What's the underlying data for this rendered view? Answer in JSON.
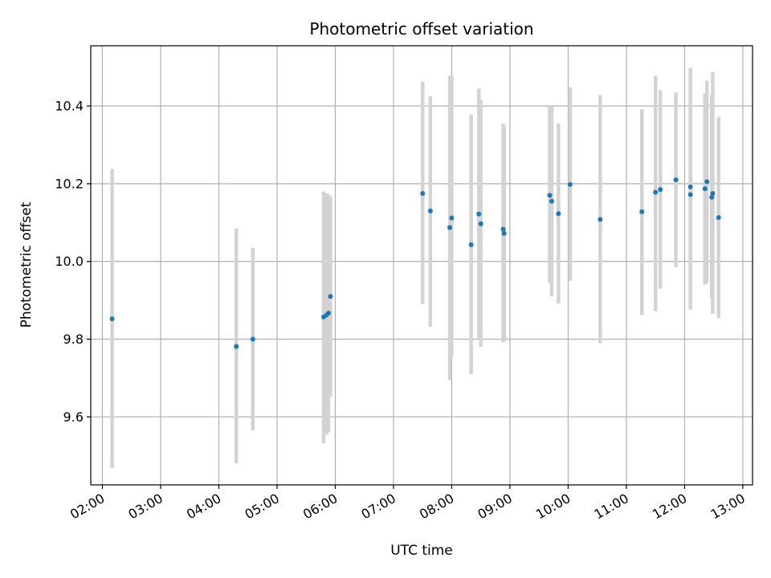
{
  "chart_data": {
    "type": "scatter",
    "title": "Photometric offset variation",
    "xlabel": "UTC time",
    "ylabel": "Photometric offset",
    "xlim": [
      "01:48",
      "13:10"
    ],
    "ylim": [
      9.425,
      10.555
    ],
    "grid": true,
    "x_ticks": [
      "02:00",
      "03:00",
      "04:00",
      "05:00",
      "06:00",
      "07:00",
      "08:00",
      "09:00",
      "10:00",
      "11:00",
      "12:00",
      "13:00"
    ],
    "y_ticks": [
      9.6,
      9.8,
      10.0,
      10.2,
      10.4
    ],
    "y_tick_labels": [
      "9.6",
      "9.8",
      "10.0",
      "10.2",
      "10.4"
    ],
    "colors": {
      "point": "#1f77b4",
      "errorbar": "#d3d3d3",
      "grid": "#b0b0b0"
    },
    "series": [
      {
        "points": [
          {
            "x": "02:10",
            "y": 9.852,
            "lo": 9.468,
            "hi": 10.238
          },
          {
            "x": "04:18",
            "y": 9.781,
            "lo": 9.48,
            "hi": 10.085
          },
          {
            "x": "04:35",
            "y": 9.8,
            "lo": 9.565,
            "hi": 10.035
          },
          {
            "x": "05:48",
            "y": 9.857,
            "lo": 9.532,
            "hi": 10.18
          },
          {
            "x": "05:51",
            "y": 9.862,
            "lo": 9.555,
            "hi": 10.175
          },
          {
            "x": "05:53",
            "y": 9.867,
            "lo": 9.56,
            "hi": 10.172
          },
          {
            "x": "05:55",
            "y": 9.91,
            "lo": 9.652,
            "hi": 10.167
          },
          {
            "x": "07:30",
            "y": 10.175,
            "lo": 9.89,
            "hi": 10.462
          },
          {
            "x": "07:38",
            "y": 10.13,
            "lo": 9.832,
            "hi": 10.425
          },
          {
            "x": "07:58",
            "y": 10.087,
            "lo": 9.695,
            "hi": 10.478
          },
          {
            "x": "08:00",
            "y": 10.112,
            "lo": 9.755,
            "hi": 10.475
          },
          {
            "x": "08:20",
            "y": 10.043,
            "lo": 9.71,
            "hi": 10.378
          },
          {
            "x": "08:28",
            "y": 10.122,
            "lo": 9.8,
            "hi": 10.445
          },
          {
            "x": "08:30",
            "y": 10.097,
            "lo": 9.78,
            "hi": 10.415
          },
          {
            "x": "08:53",
            "y": 10.083,
            "lo": 9.792,
            "hi": 10.355
          },
          {
            "x": "08:54",
            "y": 10.072,
            "lo": 9.795,
            "hi": 10.348
          },
          {
            "x": "09:41",
            "y": 10.17,
            "lo": 9.945,
            "hi": 10.4
          },
          {
            "x": "09:43",
            "y": 10.155,
            "lo": 9.91,
            "hi": 10.398
          },
          {
            "x": "09:50",
            "y": 10.123,
            "lo": 9.892,
            "hi": 10.355
          },
          {
            "x": "10:02",
            "y": 10.198,
            "lo": 9.95,
            "hi": 10.448
          },
          {
            "x": "10:33",
            "y": 10.108,
            "lo": 9.79,
            "hi": 10.428
          },
          {
            "x": "11:16",
            "y": 10.128,
            "lo": 9.862,
            "hi": 10.392
          },
          {
            "x": "11:30",
            "y": 10.178,
            "lo": 9.872,
            "hi": 10.478
          },
          {
            "x": "11:35",
            "y": 10.185,
            "lo": 9.93,
            "hi": 10.44
          },
          {
            "x": "11:51",
            "y": 10.21,
            "lo": 9.985,
            "hi": 10.435
          },
          {
            "x": "12:06",
            "y": 10.192,
            "lo": 9.876,
            "hi": 10.498
          },
          {
            "x": "12:06",
            "y": 10.172,
            "lo": 9.876,
            "hi": 10.498
          },
          {
            "x": "12:21",
            "y": 10.187,
            "lo": 9.94,
            "hi": 10.432
          },
          {
            "x": "12:23",
            "y": 10.205,
            "lo": 9.945,
            "hi": 10.465
          },
          {
            "x": "12:28",
            "y": 10.165,
            "lo": 9.905,
            "hi": 10.428
          },
          {
            "x": "12:29",
            "y": 10.175,
            "lo": 9.865,
            "hi": 10.488
          },
          {
            "x": "12:35",
            "y": 10.113,
            "lo": 9.855,
            "hi": 10.372
          }
        ]
      }
    ]
  }
}
